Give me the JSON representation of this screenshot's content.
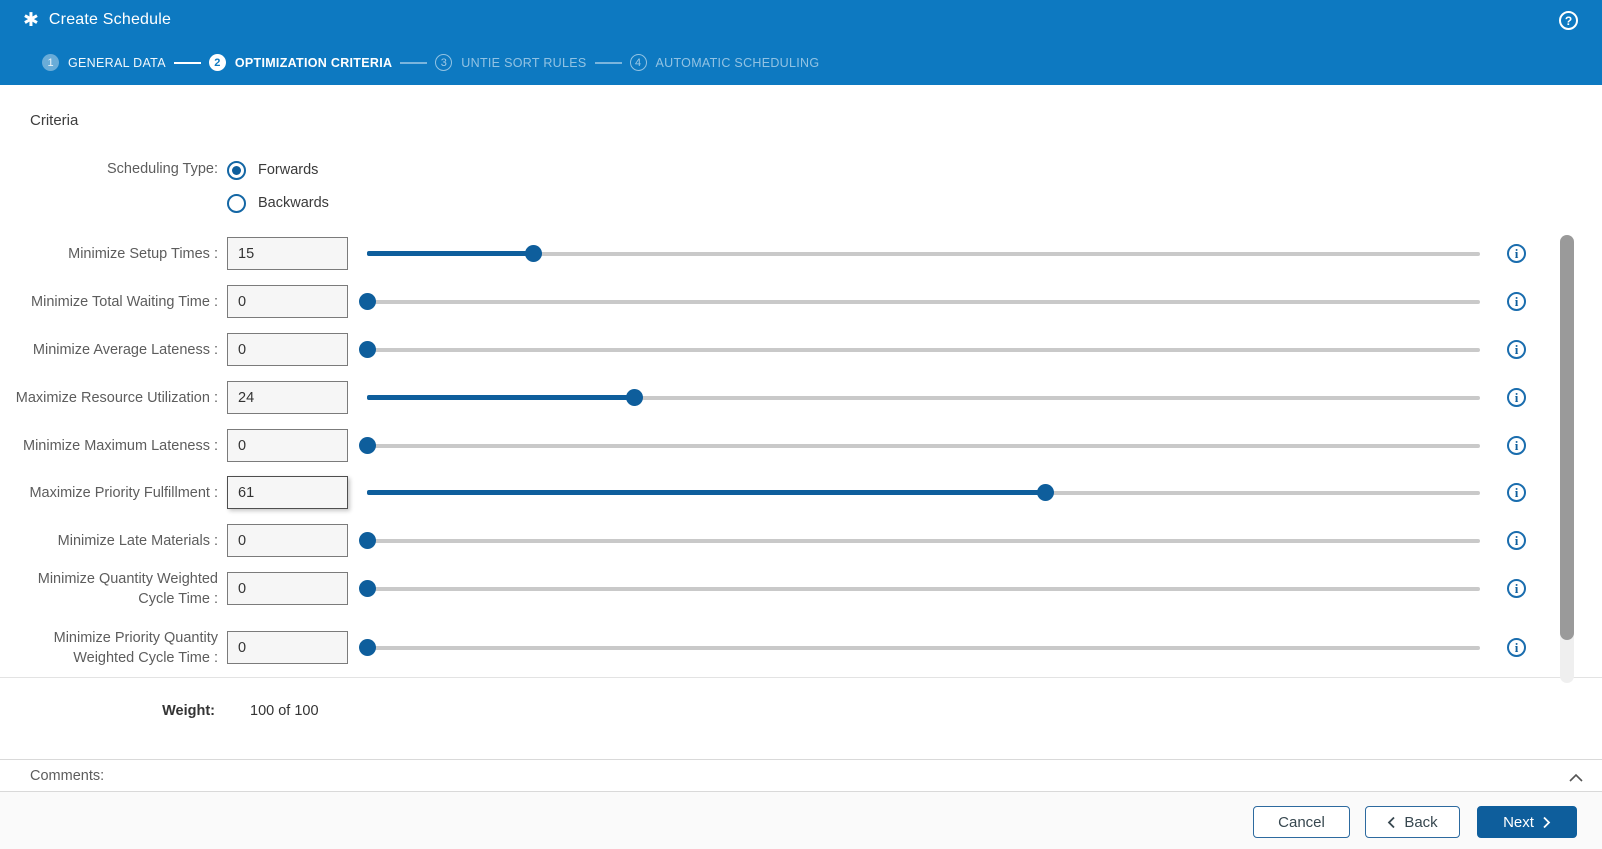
{
  "header": {
    "title": "Create Schedule",
    "title_icon_glyph": "✱",
    "help_icon_glyph": "?"
  },
  "stepper": {
    "steps": [
      {
        "number": "1",
        "label": "GENERAL DATA",
        "state": "completed"
      },
      {
        "number": "2",
        "label": "OPTIMIZATION CRITERIA",
        "state": "active"
      },
      {
        "number": "3",
        "label": "UNTIE SORT RULES",
        "state": "upcoming"
      },
      {
        "number": "4",
        "label": "AUTOMATIC SCHEDULING",
        "state": "upcoming"
      }
    ]
  },
  "criteria": {
    "section_title": "Criteria",
    "scheduling_type": {
      "label": "Scheduling Type:",
      "options": [
        {
          "label": "Forwards",
          "selected": true
        },
        {
          "label": "Backwards",
          "selected": false
        }
      ]
    },
    "slider_min": 0,
    "slider_max": 100,
    "info_icon_glyph": "i",
    "sliders": [
      {
        "label": "Minimize Setup Times :",
        "value": 15,
        "focused": false
      },
      {
        "label": "Minimize Total Waiting Time :",
        "value": 0,
        "focused": false
      },
      {
        "label": "Minimize Average Lateness :",
        "value": 0,
        "focused": false
      },
      {
        "label": "Maximize Resource Utilization :",
        "value": 24,
        "focused": false
      },
      {
        "label": "Minimize Maximum Lateness :",
        "value": 0,
        "focused": false
      },
      {
        "label": "Maximize Priority Fulfillment :",
        "value": 61,
        "focused": true
      },
      {
        "label": "Minimize Late Materials :",
        "value": 0,
        "focused": false
      },
      {
        "label": "Minimize Quantity Weighted Cycle Time :",
        "value": 0,
        "focused": false
      },
      {
        "label": "Minimize Priority Quantity Weighted Cycle Time :",
        "value": 0,
        "focused": false
      }
    ],
    "weight": {
      "label": "Weight:",
      "value": "100 of 100"
    }
  },
  "comments": {
    "label": "Comments:",
    "collapsed": true
  },
  "footer": {
    "cancel_label": "Cancel",
    "back_label": "Back",
    "next_label": "Next"
  },
  "colors": {
    "header_blue": "#0d79c1",
    "primary_blue": "#0e5e9c",
    "track_gray": "#c9c9c9"
  }
}
